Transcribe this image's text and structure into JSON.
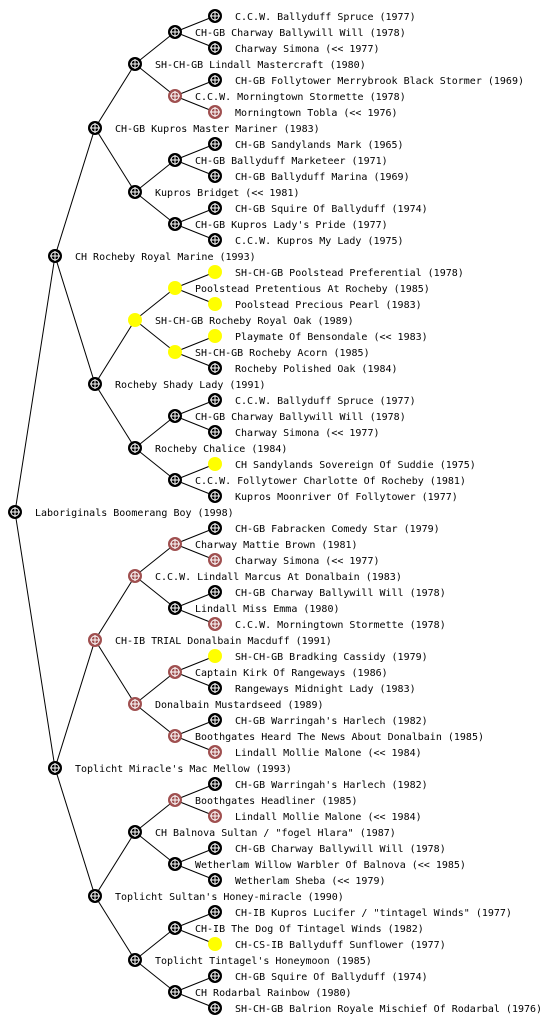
{
  "nodes": [
    {
      "label": "C.C.W. Ballyduff Spruce (1977)",
      "color": "#000000"
    },
    {
      "label": "CH-GB Charway Ballywill Will (1978)",
      "color": "#000000"
    },
    {
      "label": "Charway Simona (<< 1977)",
      "color": "#000000"
    },
    {
      "label": "SH-CH-GB Lindall Mastercraft (1980)",
      "color": "#000000"
    },
    {
      "label": "CH-GB Follytower Merrybrook Black Stormer (1969)",
      "color": "#000000"
    },
    {
      "label": "C.C.W. Morningtown Stormette (1978)",
      "color": "#a05050"
    },
    {
      "label": "Morningtown Tobla (<< 1976)",
      "color": "#a05050"
    },
    {
      "label": "CH-GB Kupros Master Mariner (1983)",
      "color": "#000000"
    },
    {
      "label": "CH-GB Sandylands Mark (1965)",
      "color": "#000000"
    },
    {
      "label": "CH-GB Ballyduff Marketeer (1971)",
      "color": "#000000"
    },
    {
      "label": "CH-GB Ballyduff Marina (1969)",
      "color": "#000000"
    },
    {
      "label": "Kupros Bridget (<< 1981)",
      "color": "#000000"
    },
    {
      "label": "CH-GB Squire Of Ballyduff (1974)",
      "color": "#000000"
    },
    {
      "label": "CH-GB Kupros Lady's Pride (1977)",
      "color": "#000000"
    },
    {
      "label": "C.C.W. Kupros My Lady (1975)",
      "color": "#000000"
    },
    {
      "label": "CH Rocheby Royal Marine (1993)",
      "color": "#000000"
    },
    {
      "label": "SH-CH-GB Poolstead Preferential (1978)",
      "color": "#ffff00"
    },
    {
      "label": "Poolstead Pretentious At Rocheby (1985)",
      "color": "#ffff00"
    },
    {
      "label": "Poolstead Precious Pearl (1983)",
      "color": "#ffff00"
    },
    {
      "label": "SH-CH-GB Rocheby Royal Oak (1989)",
      "color": "#ffff00"
    },
    {
      "label": "Playmate Of Bensondale (<< 1983)",
      "color": "#ffff00"
    },
    {
      "label": "SH-CH-GB Rocheby Acorn (1985)",
      "color": "#ffff00"
    },
    {
      "label": "Rocheby Polished Oak (1984)",
      "color": "#000000"
    },
    {
      "label": "Rocheby Shady Lady (1991)",
      "color": "#000000"
    },
    {
      "label": "C.C.W. Ballyduff Spruce (1977)",
      "color": "#000000"
    },
    {
      "label": "CH-GB Charway Ballywill Will (1978)",
      "color": "#000000"
    },
    {
      "label": "Charway Simona (<< 1977)",
      "color": "#000000"
    },
    {
      "label": "Rocheby Chalice (1984)",
      "color": "#000000"
    },
    {
      "label": "CH Sandylands Sovereign Of Suddie (1975)",
      "color": "#ffff00"
    },
    {
      "label": "C.C.W. Follytower Charlotte Of Rocheby (1981)",
      "color": "#000000"
    },
    {
      "label": "Kupros Moonriver Of Follytower (1977)",
      "color": "#000000"
    },
    {
      "label": "Laboriginals Boomerang Boy (1998)",
      "color": "#000000"
    },
    {
      "label": "CH-GB Fabracken Comedy Star (1979)",
      "color": "#000000"
    },
    {
      "label": "Charway Mattie Brown (1981)",
      "color": "#a05050"
    },
    {
      "label": "Charway Simona (<< 1977)",
      "color": "#a05050"
    },
    {
      "label": "C.C.W. Lindall Marcus At Donalbain (1983)",
      "color": "#a05050"
    },
    {
      "label": "CH-GB Charway Ballywill Will (1978)",
      "color": "#000000"
    },
    {
      "label": "Lindall Miss Emma (1980)",
      "color": "#000000"
    },
    {
      "label": "C.C.W. Morningtown Stormette (1978)",
      "color": "#a05050"
    },
    {
      "label": "CH-IB TRIAL Donalbain Macduff (1991)",
      "color": "#a05050"
    },
    {
      "label": "SH-CH-GB Bradking Cassidy (1979)",
      "color": "#ffff00"
    },
    {
      "label": "Captain Kirk Of Rangeways (1986)",
      "color": "#a05050"
    },
    {
      "label": "Rangeways Midnight Lady (1983)",
      "color": "#000000"
    },
    {
      "label": "Donalbain Mustardseed (1989)",
      "color": "#a05050"
    },
    {
      "label": "CH-GB Warringah's Harlech (1982)",
      "color": "#000000"
    },
    {
      "label": "Boothgates Heard The News About Donalbain (1985)",
      "color": "#a05050"
    },
    {
      "label": "Lindall Mollie Malone (<< 1984)",
      "color": "#a05050"
    },
    {
      "label": "Toplicht Miracle's Mac Mellow (1993)",
      "color": "#000000"
    },
    {
      "label": "CH-GB Warringah's Harlech (1982)",
      "color": "#000000"
    },
    {
      "label": "Boothgates Headliner (1985)",
      "color": "#a05050"
    },
    {
      "label": "Lindall Mollie Malone (<< 1984)",
      "color": "#a05050"
    },
    {
      "label": "CH Balnova Sultan / \"fogel Hlara\" (1987)",
      "color": "#000000"
    },
    {
      "label": "CH-GB Charway Ballywill Will (1978)",
      "color": "#000000"
    },
    {
      "label": "Wetherlam Willow Warbler Of Balnova (<< 1985)",
      "color": "#000000"
    },
    {
      "label": "Wetherlam Sheba (<< 1979)",
      "color": "#000000"
    },
    {
      "label": "Toplicht Sultan's Honey-miracle (1990)",
      "color": "#000000"
    },
    {
      "label": "CH-IB Kupros Lucifer / \"tintagel Winds\" (1977)",
      "color": "#000000"
    },
    {
      "label": "CH-IB The Dog Of Tintagel Winds (1982)",
      "color": "#000000"
    },
    {
      "label": "CH-CS-IB Ballyduff Sunflower (1977)",
      "color": "#ffff00"
    },
    {
      "label": "Toplicht Tintagel's Honeymoon (1985)",
      "color": "#000000"
    },
    {
      "label": "CH-GB Squire Of Ballyduff (1974)",
      "color": "#000000"
    },
    {
      "label": "CH Rodarbal Rainbow (1980)",
      "color": "#000000"
    },
    {
      "label": "SH-CH-GB Balrion Royale Mischief Of Rodarbal (1976)",
      "color": "#000000"
    }
  ]
}
